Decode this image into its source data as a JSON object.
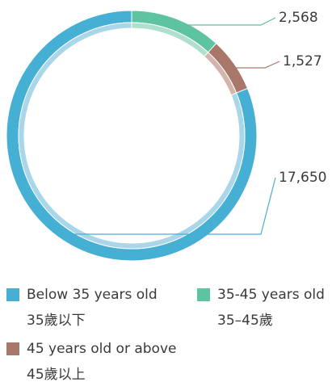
{
  "chart_data": {
    "type": "pie",
    "categories": [
      "35-45 years old",
      "45 years old or above",
      "Below 35 years old"
    ],
    "categories_local": [
      "35–45歲",
      "45歲以上",
      "35歲以下"
    ],
    "values": [
      2568,
      1527,
      17650
    ],
    "value_labels": [
      "2,568",
      "1,527",
      "17,650"
    ],
    "colors": [
      "#5ec3a0",
      "#a8776a",
      "#45afd4"
    ],
    "inner_colors": [
      "#afe0cd",
      "#d3b5ad",
      "#a9d6e9"
    ]
  }
}
